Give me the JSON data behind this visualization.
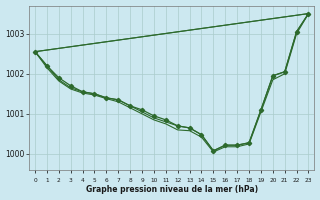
{
  "title": "Graphe pression niveau de la mer (hPa)",
  "background_color": "#cce8f0",
  "grid_color": "#aacccc",
  "line_color": "#2d6a2d",
  "ylim": [
    999.6,
    1003.7
  ],
  "yticks": [
    1000,
    1001,
    1002,
    1003
  ],
  "xlim": [
    -0.5,
    23.5
  ],
  "line1_x": [
    0,
    1,
    2,
    3,
    4,
    5,
    6,
    7,
    8,
    9,
    10,
    11,
    12,
    13,
    14,
    15,
    16,
    17,
    18,
    19,
    20,
    21,
    22,
    23
  ],
  "line1_y": [
    1002.55,
    1002.2,
    1001.9,
    1001.7,
    1001.55,
    1001.5,
    1001.4,
    1001.35,
    1001.2,
    1001.1,
    1000.95,
    1000.85,
    1000.7,
    1000.65,
    1000.48,
    1000.08,
    1000.22,
    1000.22,
    1000.28,
    1001.1,
    1001.95,
    1002.05,
    1003.05,
    1003.5
  ],
  "line2_x": [
    0,
    1,
    2,
    3,
    4,
    5,
    6,
    7,
    8,
    9,
    10,
    11,
    12,
    13,
    14,
    15,
    16,
    17,
    18,
    19,
    20,
    21,
    22,
    23
  ],
  "line2_y": [
    1002.55,
    1002.2,
    1001.85,
    1001.65,
    1001.55,
    1001.5,
    1001.4,
    1001.35,
    1001.2,
    1001.05,
    1000.9,
    1000.8,
    1000.7,
    1000.65,
    1000.48,
    1000.08,
    1000.22,
    1000.22,
    1000.28,
    1001.1,
    1001.95,
    1002.05,
    1003.05,
    1003.5
  ],
  "line3_x": [
    0,
    23
  ],
  "line3_y": [
    1002.55,
    1003.5
  ],
  "line4_x": [
    0,
    23
  ],
  "line4_y": [
    1002.55,
    1003.5
  ],
  "line5_x": [
    0,
    1,
    2,
    3,
    4,
    5,
    6,
    7,
    8,
    9,
    10,
    11,
    12,
    13,
    14,
    15,
    16,
    17,
    18,
    19,
    20,
    21,
    22,
    23
  ],
  "line5_y": [
    1002.55,
    1002.15,
    1001.82,
    1001.62,
    1001.52,
    1001.47,
    1001.38,
    1001.3,
    1001.15,
    1001.0,
    1000.85,
    1000.75,
    1000.6,
    1000.58,
    1000.42,
    1000.05,
    1000.18,
    1000.18,
    1000.25,
    1001.05,
    1001.85,
    1002.0,
    1003.0,
    1003.5
  ],
  "x_labels": [
    "0",
    "1",
    "2",
    "3",
    "4",
    "5",
    "6",
    "7",
    "8",
    "9",
    "10",
    "11",
    "12",
    "13",
    "14",
    "15",
    "16",
    "17",
    "18",
    "19",
    "20",
    "21",
    "22",
    "23"
  ]
}
